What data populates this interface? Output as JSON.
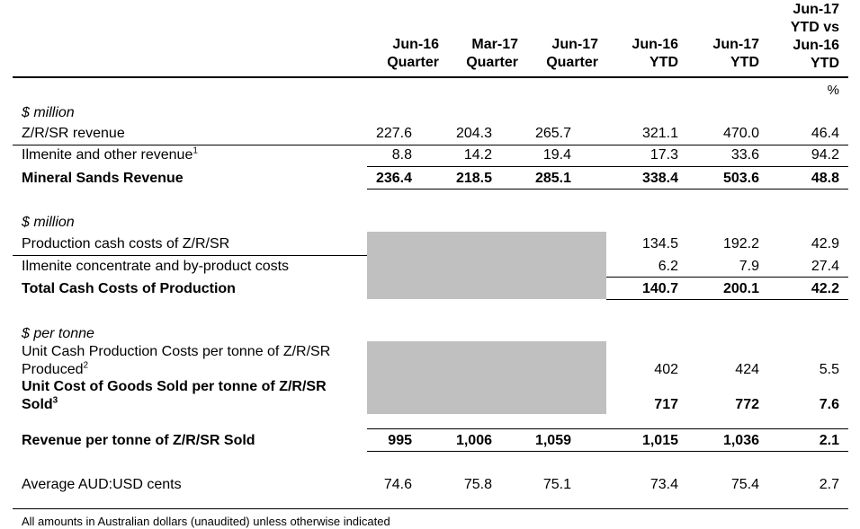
{
  "columns": [
    {
      "line1": "",
      "line2": "Jun-16",
      "line3": "Quarter"
    },
    {
      "line1": "",
      "line2": "Mar-17",
      "line3": "Quarter"
    },
    {
      "line1": "",
      "line2": "Jun-17",
      "line3": "Quarter"
    },
    {
      "line1": "",
      "line2": "Jun-16",
      "line3": "YTD"
    },
    {
      "line1": "",
      "line2": "Jun-17",
      "line3": "YTD"
    },
    {
      "line0": "Jun-17",
      "line1": "YTD vs",
      "line2": "Jun-16",
      "line3": "YTD"
    }
  ],
  "unit_percent": "%",
  "sections": {
    "s1": "$ million",
    "s2": "$ million",
    "s3": "$ per tonne"
  },
  "rows": {
    "zr_rev": {
      "label": "Z/R/SR revenue",
      "values": [
        "227.6",
        "204.3",
        "265.7",
        "321.1",
        "470.0",
        "46.4"
      ]
    },
    "ilm_rev": {
      "label": "Ilmenite and other revenue",
      "sup": "1",
      "values": [
        "8.8",
        "14.2",
        "19.4",
        "17.3",
        "33.6",
        "94.2"
      ]
    },
    "ms_rev": {
      "label": "Mineral Sands Revenue",
      "values": [
        "236.4",
        "218.5",
        "285.1",
        "338.4",
        "503.6",
        "48.8"
      ]
    },
    "prod_cash": {
      "label": "Production cash costs of Z/R/SR",
      "values": [
        "134.5",
        "192.2",
        "42.9"
      ]
    },
    "ilm_conc": {
      "label": "Ilmenite concentrate and by-product costs",
      "values": [
        "6.2",
        "7.9",
        "27.4"
      ]
    },
    "total_cash": {
      "label": "Total Cash Costs of Production",
      "values": [
        "140.7",
        "200.1",
        "42.2"
      ]
    },
    "unit_cash": {
      "label1": "Unit Cash Production Costs per tonne of Z/R/SR",
      "label2": "Produced",
      "sup": "2",
      "values": [
        "402",
        "424",
        "5.5"
      ]
    },
    "unit_cogs": {
      "label1": "Unit Cost of Goods Sold per tonne of Z/R/SR",
      "label2": "Sold",
      "sup": "3",
      "values": [
        "717",
        "772",
        "7.6"
      ]
    },
    "rev_tonne": {
      "label": "Revenue per tonne of Z/R/SR Sold",
      "values": [
        "995",
        "1,006",
        "1,059",
        "1,015",
        "1,036",
        "2.1"
      ]
    },
    "aud_usd": {
      "label": "Average AUD:USD cents",
      "values": [
        "74.6",
        "75.8",
        "75.1",
        "73.4",
        "75.4",
        "2.7"
      ]
    }
  },
  "footnote": "All amounts in Australian dollars (unaudited) unless otherwise indicated"
}
